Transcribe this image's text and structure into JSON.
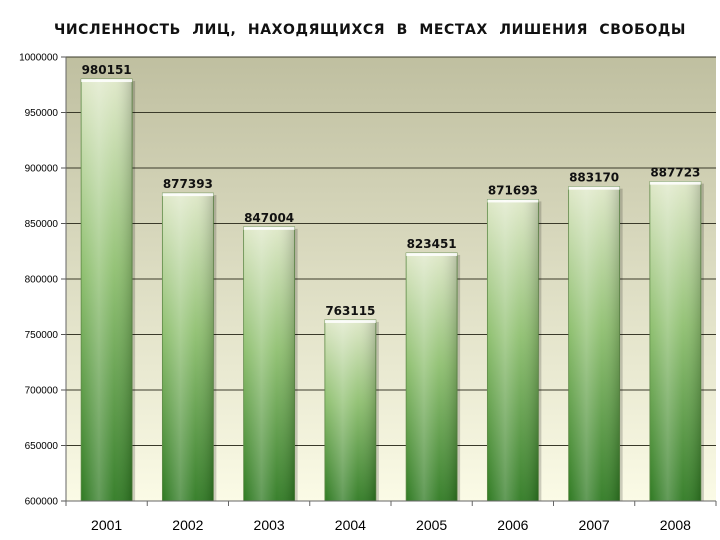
{
  "chart_data": {
    "type": "bar",
    "title": "ЧИСЛЕННОСТЬ   ЛИЦ,   НАХОДЯЩИХСЯ    В   МЕСТАХ  ЛИШЕНИЯ  СВОБОДЫ",
    "categories": [
      "2001",
      "2002",
      "2003",
      "2004",
      "2005",
      "2006",
      "2007",
      "2008"
    ],
    "values": [
      980151,
      877393,
      847004,
      763115,
      823451,
      871693,
      883170,
      887723
    ],
    "ylim": [
      600000,
      1000000
    ],
    "yticks": [
      "1000000",
      "950000",
      "900000",
      "850000",
      "800000",
      "750000",
      "700000",
      "650000",
      "600000"
    ],
    "ytick_values": [
      1000000,
      950000,
      900000,
      850000,
      800000,
      750000,
      700000,
      650000,
      600000
    ],
    "grid": true,
    "colors": {
      "bar_top": "#dfe8c8",
      "bar_mid": "#8fc070",
      "bar_bottom": "#2f7a22",
      "plot_top": "#bfbfa0",
      "plot_bottom": "#fbfbe6",
      "grid": "#3a3a2a"
    }
  }
}
